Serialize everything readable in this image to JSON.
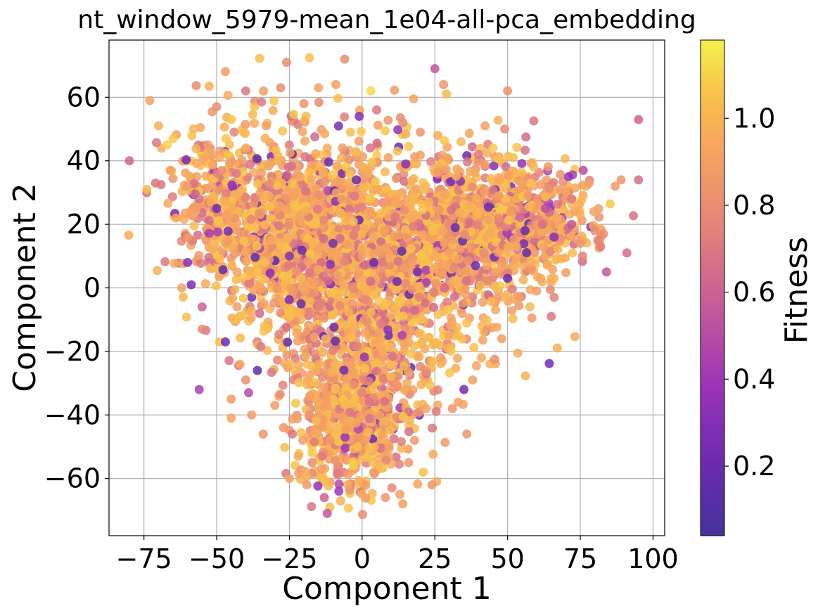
{
  "chart_data": {
    "type": "scatter",
    "title": "nt_window_5979-mean_1e04-all-pca_embedding",
    "xlabel": "Component 1",
    "ylabel": "Component 2",
    "xlim": [
      -87,
      104
    ],
    "ylim": [
      -78,
      78
    ],
    "xticks": [
      -75,
      -50,
      -25,
      0,
      25,
      50,
      75,
      100
    ],
    "xtick_labels": [
      "−75",
      "−50",
      "−25",
      "0",
      "25",
      "50",
      "75",
      "100"
    ],
    "yticks": [
      -60,
      -40,
      -20,
      0,
      20,
      40,
      60
    ],
    "ytick_labels": [
      "−60",
      "−40",
      "−20",
      "0",
      "20",
      "40",
      "60"
    ],
    "grid": true,
    "colormap": "plasma",
    "marker_alpha": 0.85,
    "colorbar": {
      "label": "Fitness",
      "range": [
        0.04,
        1.18
      ],
      "ticks": [
        0.2,
        0.4,
        0.6,
        0.8,
        1.0
      ],
      "tick_labels": [
        "0.2",
        "0.4",
        "0.6",
        "0.8",
        "1.0"
      ]
    },
    "points": [
      [
        -80,
        40,
        0.62
      ],
      [
        -74,
        31,
        1.05
      ],
      [
        -73,
        59,
        0.92
      ],
      [
        -70,
        51,
        0.98
      ],
      [
        -71,
        33,
        0.7
      ],
      [
        -67,
        45,
        1.1
      ],
      [
        -65,
        47,
        1.08
      ],
      [
        -66,
        37,
        0.9
      ],
      [
        -64,
        22,
        0.95
      ],
      [
        -62,
        0,
        0.92
      ],
      [
        -60,
        8,
        0.3
      ],
      [
        -60,
        16,
        0.85
      ],
      [
        -58,
        50,
        1.02
      ],
      [
        -57,
        25,
        0.88
      ],
      [
        -56,
        -32,
        0.45
      ],
      [
        -55,
        -6,
        0.6
      ],
      [
        -55,
        -13,
        0.78
      ],
      [
        -53,
        45,
        0.9
      ],
      [
        -52,
        27,
        0.95
      ],
      [
        -50,
        25,
        0.22
      ],
      [
        -50,
        57,
        0.8
      ],
      [
        -49,
        41,
        0.95
      ],
      [
        -49,
        -17,
        1.05
      ],
      [
        -47,
        -17,
        0.2
      ],
      [
        -46,
        15,
        0.9
      ],
      [
        -45,
        -41,
        0.92
      ],
      [
        -45,
        -35,
        0.88
      ],
      [
        -44,
        49,
        0.76
      ],
      [
        -43,
        5,
        0.9
      ],
      [
        -42,
        -24,
        0.95
      ],
      [
        -40,
        62,
        0.7
      ],
      [
        -40,
        44,
        0.98
      ],
      [
        -40,
        -29,
        0.82
      ],
      [
        -39,
        -33,
        0.5
      ],
      [
        -38,
        -40,
        0.88
      ],
      [
        -37,
        57,
        1.05
      ],
      [
        -36,
        -26,
        0.15
      ],
      [
        -35,
        30,
        0.92
      ],
      [
        -34,
        -46,
        0.85
      ],
      [
        -33,
        51,
        0.9
      ],
      [
        -31,
        15,
        0.96
      ],
      [
        -30,
        -37,
        0.9
      ],
      [
        -29,
        40,
        1.0
      ],
      [
        -28,
        63,
        0.8
      ],
      [
        -27,
        -44,
        0.85
      ],
      [
        -26,
        71,
        0.8
      ],
      [
        -25,
        -60,
        0.92
      ],
      [
        -25,
        10,
        0.3
      ],
      [
        -24,
        -46,
        0.7
      ],
      [
        -23,
        30,
        0.9
      ],
      [
        -22,
        -53,
        0.95
      ],
      [
        -21,
        -5,
        0.2
      ],
      [
        -20,
        58,
        0.85
      ],
      [
        -19,
        -62,
        0.85
      ],
      [
        -18,
        -34,
        0.9
      ],
      [
        -17,
        14,
        0.98
      ],
      [
        -16,
        20,
        1.05
      ],
      [
        -15,
        63,
        0.92
      ],
      [
        -14,
        -57,
        0.9
      ],
      [
        -13,
        -66,
        0.6
      ],
      [
        -12,
        -71,
        0.55
      ],
      [
        -12,
        44,
        0.96
      ],
      [
        -11,
        -48,
        0.88
      ],
      [
        -10,
        14,
        0.25
      ],
      [
        -9,
        64,
        0.9
      ],
      [
        -8,
        -64,
        0.4
      ],
      [
        -7,
        28,
        0.9
      ],
      [
        -6,
        72,
        0.8
      ],
      [
        -5,
        -42,
        0.95
      ],
      [
        -4,
        49,
        1.05
      ],
      [
        -3,
        -56,
        1.1
      ],
      [
        -2,
        34,
        0.2
      ],
      [
        -1,
        54,
        0.3
      ],
      [
        0,
        -65,
        0.95
      ],
      [
        0,
        10,
        0.9
      ],
      [
        1,
        -48,
        0.9
      ],
      [
        2,
        36,
        0.96
      ],
      [
        3,
        62,
        1.12
      ],
      [
        4,
        8,
        0.2
      ],
      [
        4,
        -58,
        0.9
      ],
      [
        5,
        56,
        0.7
      ],
      [
        6,
        -40,
        0.9
      ],
      [
        7,
        -20,
        0.95
      ],
      [
        8,
        -66,
        0.85
      ],
      [
        9,
        41,
        0.9
      ],
      [
        10,
        -28,
        1.02
      ],
      [
        11,
        16,
        0.9
      ],
      [
        12,
        2,
        0.18
      ],
      [
        13,
        -65,
        0.9
      ],
      [
        14,
        -68,
        0.9
      ],
      [
        14,
        52,
        0.8
      ],
      [
        15,
        39,
        0.3
      ],
      [
        16,
        -55,
        0.85
      ],
      [
        17,
        8,
        0.9
      ],
      [
        18,
        -48,
        0.88
      ],
      [
        19,
        5,
        0.2
      ],
      [
        20,
        49,
        0.85
      ],
      [
        21,
        -58,
        1.05
      ],
      [
        22,
        -38,
        0.92
      ],
      [
        23,
        27,
        0.96
      ],
      [
        24,
        -62,
        0.85
      ],
      [
        25,
        69,
        0.55
      ],
      [
        26,
        48,
        0.95
      ],
      [
        27,
        -22,
        0.9
      ],
      [
        28,
        64,
        0.85
      ],
      [
        29,
        61,
        1.02
      ],
      [
        30,
        11,
        0.92
      ],
      [
        31,
        -38,
        0.85
      ],
      [
        32,
        19,
        0.18
      ],
      [
        33,
        -36,
        0.9
      ],
      [
        34,
        46,
        1.0
      ],
      [
        35,
        -32,
        0.25
      ],
      [
        36,
        -46,
        0.85
      ],
      [
        37,
        26,
        0.96
      ],
      [
        38,
        -29,
        0.9
      ],
      [
        39,
        7,
        0.2
      ],
      [
        40,
        42,
        0.7
      ],
      [
        41,
        -22,
        0.95
      ],
      [
        42,
        30,
        0.9
      ],
      [
        43,
        -13,
        0.88
      ],
      [
        44,
        17,
        0.95
      ],
      [
        45,
        44,
        1.08
      ],
      [
        46,
        5,
        0.92
      ],
      [
        47,
        29,
        0.88
      ],
      [
        48,
        -16,
        0.9
      ],
      [
        49,
        50,
        0.78
      ],
      [
        50,
        62,
        0.82
      ],
      [
        50,
        3,
        0.2
      ],
      [
        51,
        24,
        0.9
      ],
      [
        52,
        41,
        1.05
      ],
      [
        53,
        13,
        0.95
      ],
      [
        54,
        -3,
        0.9
      ],
      [
        55,
        33,
        0.92
      ],
      [
        56,
        18,
        0.18
      ],
      [
        57,
        29,
        0.85
      ],
      [
        58,
        8,
        0.96
      ],
      [
        59,
        38,
        1.02
      ],
      [
        60,
        -1,
        0.88
      ],
      [
        61,
        26,
        0.9
      ],
      [
        62,
        20,
        0.65
      ],
      [
        63,
        25,
        0.5
      ],
      [
        64,
        15,
        0.92
      ],
      [
        65,
        -9,
        0.7
      ],
      [
        66,
        -3,
        0.75
      ],
      [
        66,
        16,
        0.3
      ],
      [
        66,
        3,
        1.0
      ],
      [
        67,
        22,
        0.95
      ],
      [
        68,
        31,
        0.88
      ],
      [
        70,
        28,
        0.9
      ],
      [
        71,
        35,
        0.35
      ],
      [
        72,
        20,
        0.55
      ],
      [
        72,
        28,
        0.7
      ],
      [
        73,
        24,
        0.92
      ],
      [
        75,
        14,
        0.85
      ],
      [
        76,
        37,
        0.5
      ],
      [
        77,
        32,
        0.98
      ],
      [
        78,
        33,
        0.9
      ],
      [
        80,
        18,
        0.8
      ],
      [
        81,
        15,
        0.75
      ],
      [
        82,
        13,
        0.72
      ],
      [
        83,
        17,
        0.8
      ],
      [
        84,
        5,
        0.55
      ],
      [
        87,
        32,
        0.88
      ],
      [
        89,
        34,
        0.85
      ],
      [
        91,
        11,
        0.65
      ],
      [
        95,
        53,
        0.62
      ],
      [
        95,
        34,
        0.65
      ]
    ]
  }
}
